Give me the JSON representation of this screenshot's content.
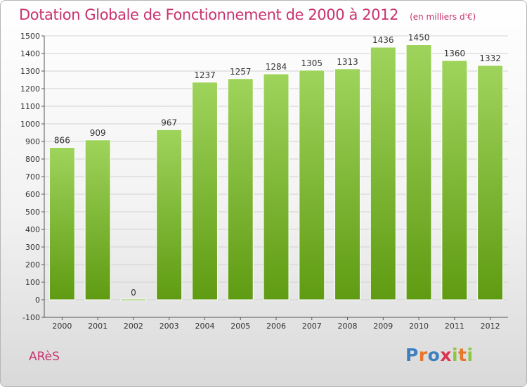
{
  "header": {
    "title": "Dotation Globale de Fonctionnement de 2000 à 2012",
    "subtitle": "(en milliers d'€)"
  },
  "footer": {
    "commune": "ARèS",
    "logo_text": "Proxiti"
  },
  "colors": {
    "title": "#c8336e",
    "bar_top": "#9fd45c",
    "bar_bottom": "#5f9b12",
    "grid": "#d2d2d2",
    "axis": "#555555",
    "label": "#333333"
  },
  "chart_data": {
    "type": "bar",
    "title": "Dotation Globale de Fonctionnement de 2000 à 2012",
    "subtitle": "(en milliers d'€)",
    "categories": [
      "2000",
      "2001",
      "2002",
      "2003",
      "2004",
      "2005",
      "2006",
      "2007",
      "2008",
      "2009",
      "2010",
      "2011",
      "2012"
    ],
    "values": [
      866,
      909,
      0,
      967,
      1237,
      1257,
      1284,
      1305,
      1313,
      1436,
      1450,
      1360,
      1332
    ],
    "xlabel": "",
    "ylabel": "",
    "ylim": [
      -100,
      1500
    ],
    "yticks": [
      -100,
      0,
      100,
      200,
      300,
      400,
      500,
      600,
      700,
      800,
      900,
      1000,
      1100,
      1200,
      1300,
      1400,
      1500
    ],
    "grid": true,
    "data_labels": true
  }
}
